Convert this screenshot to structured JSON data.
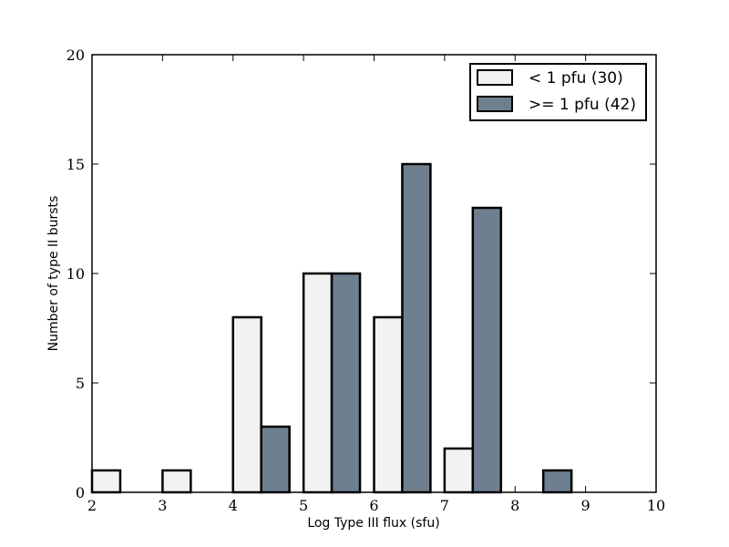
{
  "chart_data": {
    "type": "bar",
    "xlabel": "Log Type III flux (sfu)",
    "ylabel": "Number of type II bursts",
    "xlim": [
      2,
      10
    ],
    "ylim": [
      0,
      20
    ],
    "xticks": [
      2,
      3,
      4,
      5,
      6,
      7,
      8,
      9,
      10
    ],
    "yticks": [
      0,
      5,
      10,
      15,
      20
    ],
    "bin_edges": [
      2,
      3,
      4,
      5,
      6,
      7,
      8,
      9,
      10
    ],
    "legend_position": "top-right",
    "grid": false,
    "series": [
      {
        "name": "< 1 pfu (30)",
        "color": "#f2f2f2",
        "values": [
          1,
          1,
          8,
          10,
          8,
          2,
          0,
          0
        ]
      },
      {
        "name": ">= 1 pfu (42)",
        "color": "#6e7f8f",
        "values": [
          0,
          0,
          3,
          10,
          15,
          13,
          1,
          0
        ]
      }
    ]
  }
}
